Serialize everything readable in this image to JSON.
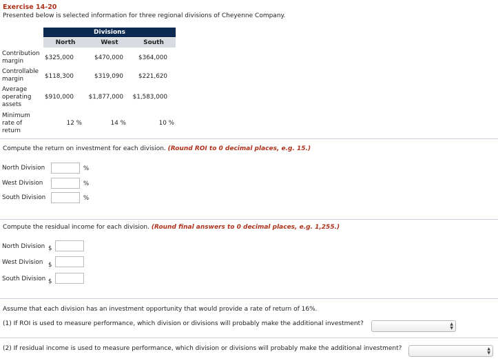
{
  "header": {
    "title": "Exercise 14-20",
    "intro": "Presented below is selected information for three regional divisions of Cheyenne Company."
  },
  "table": {
    "group_header": "Divisions",
    "columns": [
      "North",
      "West",
      "South"
    ],
    "rows": [
      {
        "label": [
          "Contribution",
          "margin"
        ],
        "values": [
          "$325,000",
          "$470,000",
          "$364,000"
        ]
      },
      {
        "label": [
          "Controllable",
          "margin"
        ],
        "values": [
          "$118,300",
          "$319,090",
          "$221,620"
        ]
      },
      {
        "label": [
          "Average",
          "operating",
          "assets"
        ],
        "values": [
          "$910,000",
          "$1,877,000",
          "$1,583,000"
        ]
      },
      {
        "label": [
          "Minimum",
          "rate of",
          "return"
        ],
        "values": [
          "12 %",
          "14 %",
          "10 %"
        ]
      }
    ]
  },
  "roi_section": {
    "prompt": "Compute the return on investment for each division.",
    "note": "(Round ROI to 0 decimal places, e.g. 15.)",
    "fields": [
      {
        "label": "North Division",
        "value": "",
        "unit": "%"
      },
      {
        "label": "West Division",
        "value": "",
        "unit": "%"
      },
      {
        "label": "South Division",
        "value": "",
        "unit": "%"
      }
    ]
  },
  "ri_section": {
    "prompt": "Compute the residual income for each division.",
    "note": "(Round final answers to 0 decimal places, e.g. 1,255.)",
    "fields": [
      {
        "label": "North Division",
        "value": "",
        "prefix": "$"
      },
      {
        "label": "West Division",
        "value": "",
        "prefix": "$"
      },
      {
        "label": "South Division",
        "value": "",
        "prefix": "$"
      }
    ]
  },
  "opportunity": {
    "statement": "Assume that each division has an investment opportunity that would provide a rate of return of 16%.",
    "q1": "(1) If ROI is used to measure performance, which division or divisions will probably make the additional investment?",
    "q2": "(2) If residual income is used to measure performance, which division or divisions will probably make the additional investment?",
    "q1_selected": "",
    "q2_selected": ""
  },
  "colors": {
    "title_red": "#b0311a",
    "header_navy": "#0d2a52",
    "subheader_gray": "#d9dbe2",
    "divider": "#c9d3de"
  },
  "icons": {
    "select_arrows": "up-down-arrows-icon"
  }
}
